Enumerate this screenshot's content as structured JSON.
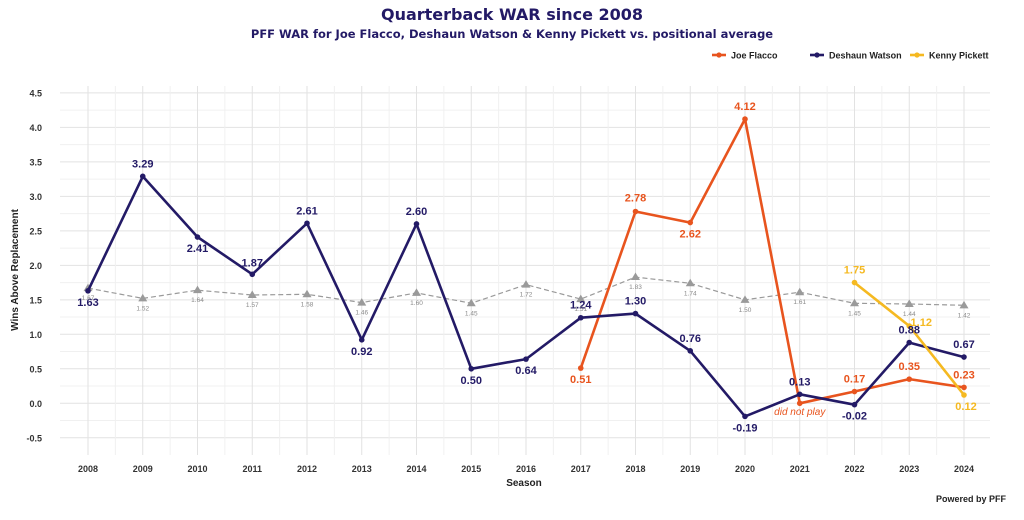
{
  "chart_data": {
    "type": "line",
    "title": "Quarterback WAR since 2008",
    "subtitle": "PFF WAR for Joe Flacco, Deshaun Watson & Kenny Pickett vs. positional average",
    "xlabel": "Season",
    "ylabel": "Wins Above Replacement",
    "credit": "Powered by PFF",
    "ylim": [
      -0.75,
      4.6
    ],
    "yticks": [
      -0.5,
      0.0,
      0.5,
      1.0,
      1.5,
      2.0,
      2.5,
      3.0,
      3.5,
      4.0,
      4.5
    ],
    "yticklabels": [
      "-0.5",
      "0.0",
      "0.5",
      "1.0",
      "1.5",
      "2.0",
      "2.5",
      "3.0",
      "3.5",
      "4.0",
      "4.5"
    ],
    "categories": [
      "2008",
      "2009",
      "2010",
      "2011",
      "2012",
      "2013",
      "2014",
      "2015",
      "2016",
      "2017",
      "2018",
      "2019",
      "2020",
      "2021",
      "2022",
      "2023",
      "2024"
    ],
    "grid": true,
    "legend_position": "top-right",
    "annotation": {
      "text": "did not play",
      "x": "2021",
      "y": -0.13,
      "color": "#e8541e"
    },
    "series": [
      {
        "name": "Joe Flacco",
        "color": "#e8541e",
        "style": "solid",
        "x": [
          "2017",
          "2018",
          "2019",
          "2020",
          "2021",
          "2022",
          "2023",
          "2024"
        ],
        "values": [
          0.51,
          2.78,
          2.62,
          4.12,
          0.0,
          0.17,
          0.35,
          0.23
        ],
        "labels": [
          "0.51",
          "2.78",
          "2.62",
          "4.12",
          "",
          "0.17",
          "0.35",
          "0.23"
        ],
        "in_legend": true
      },
      {
        "name": "Deshaun Watson",
        "color": "#231a66",
        "style": "solid",
        "x": [
          "2008",
          "2009",
          "2010",
          "2011",
          "2012",
          "2013",
          "2014",
          "2015",
          "2016",
          "2017",
          "2018",
          "2019",
          "2020",
          "2021",
          "2022",
          "2023",
          "2024"
        ],
        "values": [
          1.63,
          3.29,
          2.41,
          1.87,
          2.61,
          0.92,
          2.6,
          0.5,
          0.64,
          1.24,
          1.3,
          0.76,
          -0.19,
          0.13,
          -0.02,
          0.88,
          0.67
        ],
        "labels": [
          "1.63",
          "3.29",
          "2.41",
          "1.87",
          "2.61",
          "0.92",
          "2.60",
          "0.50",
          "0.64",
          "1.24",
          "1.30",
          "0.76",
          "-0.19",
          "0.13",
          "-0.02",
          "0.88",
          "0.67"
        ],
        "in_legend": true
      },
      {
        "name": "Kenny Pickett",
        "color": "#f5b921",
        "style": "solid",
        "x": [
          "2022",
          "2023",
          "2024"
        ],
        "values": [
          1.75,
          1.12,
          0.12
        ],
        "labels": [
          "1.75",
          "1.12",
          "0.12"
        ],
        "in_legend": true
      },
      {
        "name": "",
        "color": "#9a9a9a",
        "style": "dashed",
        "x": [
          "2008",
          "2009",
          "2010",
          "2011",
          "2012",
          "2013",
          "2014",
          "2015",
          "2016",
          "2017",
          "2018",
          "2019",
          "2020",
          "2021",
          "2022",
          "2023",
          "2024"
        ],
        "values": [
          1.67,
          1.52,
          1.64,
          1.57,
          1.58,
          1.46,
          1.6,
          1.45,
          1.72,
          1.51,
          1.83,
          1.74,
          1.5,
          1.61,
          1.45,
          1.44,
          1.42
        ],
        "labels": [
          "1.67",
          "1.52",
          "1.64",
          "1.57",
          "1.58",
          "1.46",
          "1.60",
          "1.45",
          "1.72",
          "1.51",
          "1.83",
          "1.74",
          "1.50",
          "1.61",
          "1.45",
          "1.44",
          "1.42"
        ],
        "in_legend": false
      }
    ]
  }
}
